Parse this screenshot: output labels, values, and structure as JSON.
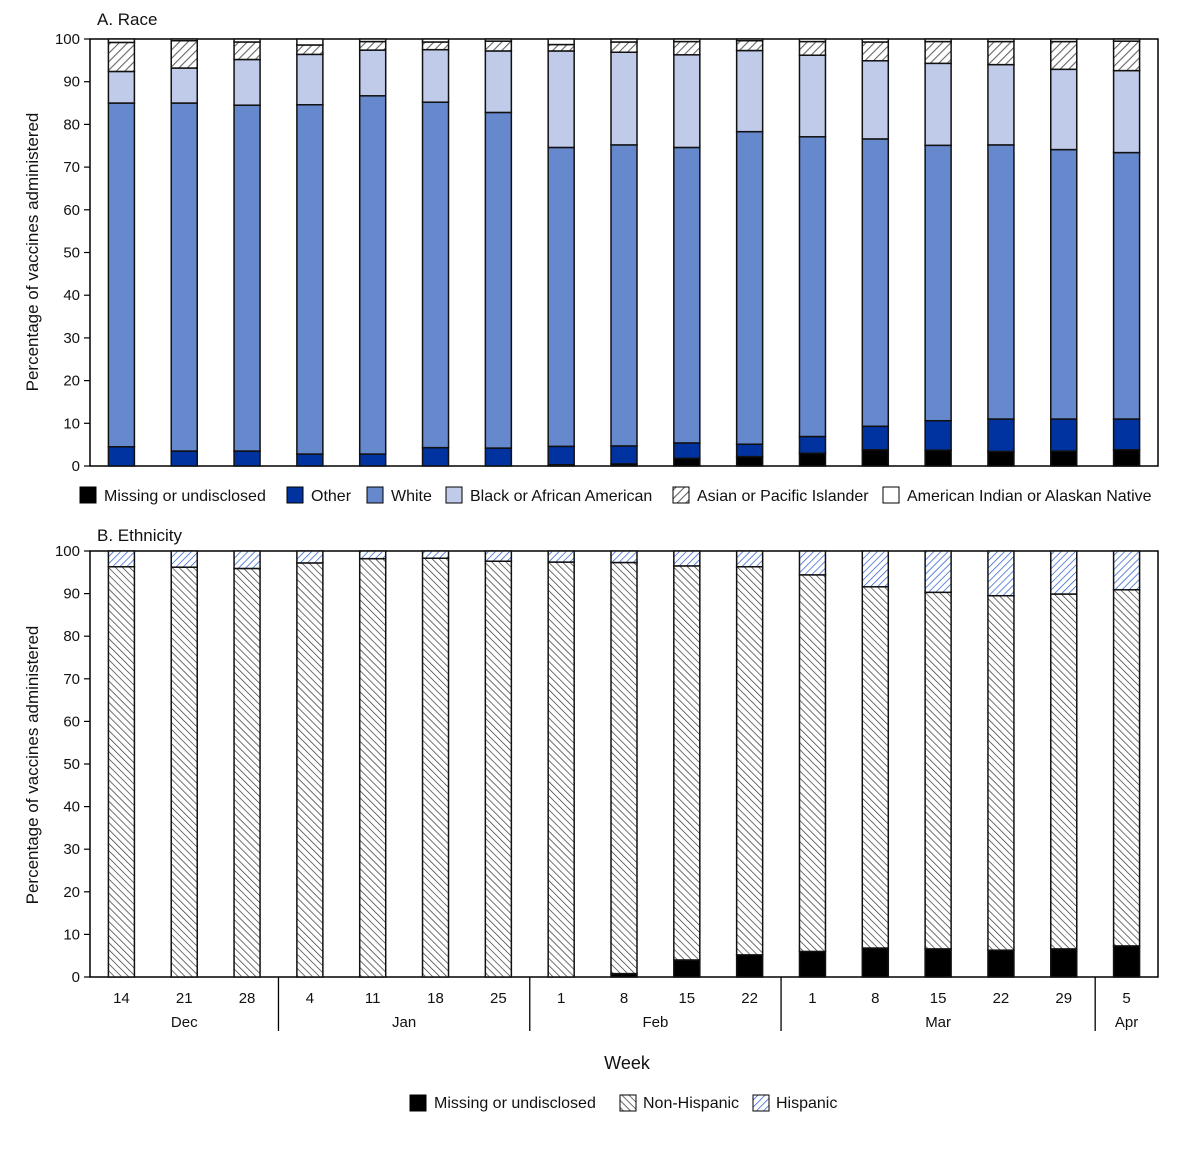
{
  "chart_data": [
    {
      "type": "bar",
      "stacked": true,
      "title": "A. Race",
      "xlabel": "",
      "ylabel": "Percentage of vaccines administered",
      "ylim": [
        0,
        100
      ],
      "yticks": [
        0,
        10,
        20,
        30,
        40,
        50,
        60,
        70,
        80,
        90,
        100
      ],
      "grid": false,
      "legend_position": "bottom",
      "categories": [
        "14",
        "21",
        "28",
        "4",
        "11",
        "18",
        "25",
        "1",
        "8",
        "15",
        "22",
        "1",
        "8",
        "15",
        "22",
        "29",
        "5"
      ],
      "series": [
        {
          "name": "Missing or undisclosed",
          "color": "#000000",
          "pattern": "solid",
          "values": [
            0,
            0,
            0,
            0,
            0,
            0,
            0,
            0.3,
            0.5,
            1.8,
            2.2,
            3.0,
            3.8,
            3.7,
            3.4,
            3.5,
            3.8
          ]
        },
        {
          "name": "Other",
          "color": "#0033a0",
          "pattern": "solid",
          "values": [
            4.5,
            3.5,
            3.5,
            2.8,
            2.8,
            4.3,
            4.2,
            4.3,
            4.2,
            3.6,
            2.9,
            3.9,
            5.5,
            6.9,
            7.6,
            7.5,
            7.2
          ]
        },
        {
          "name": "White",
          "color": "#6688cc",
          "pattern": "solid",
          "values": [
            80.5,
            81.5,
            81.0,
            81.8,
            83.9,
            80.9,
            78.6,
            70.0,
            70.5,
            69.2,
            73.2,
            70.2,
            67.3,
            64.5,
            64.2,
            63.1,
            62.4
          ]
        },
        {
          "name": "Black or African American",
          "color": "#c0cbea",
          "pattern": "solid",
          "values": [
            7.4,
            8.2,
            10.7,
            11.8,
            10.7,
            12.3,
            14.4,
            22.6,
            21.7,
            21.7,
            19.0,
            19.1,
            18.3,
            19.2,
            18.8,
            18.8,
            19.2
          ]
        },
        {
          "name": "Asian or Pacific Islander",
          "color": "#666666",
          "pattern": "hatch-forward",
          "values": [
            6.8,
            6.4,
            4.1,
            2.2,
            2.0,
            1.8,
            2.3,
            1.5,
            2.4,
            3.1,
            2.3,
            3.2,
            4.4,
            5.1,
            5.4,
            6.5,
            6.9
          ]
        },
        {
          "name": "American Indian or Alaskan Native",
          "color": "#ffffff",
          "pattern": "solid",
          "values": [
            0.8,
            0.4,
            0.7,
            1.4,
            0.6,
            0.7,
            0.5,
            1.3,
            0.7,
            0.6,
            0.4,
            0.6,
            0.7,
            0.6,
            0.6,
            0.6,
            0.5
          ]
        }
      ]
    },
    {
      "type": "bar",
      "stacked": true,
      "title": "B. Ethnicity",
      "xlabel": "Week",
      "ylabel": "Percentage of vaccines administered",
      "ylim": [
        0,
        100
      ],
      "yticks": [
        0,
        10,
        20,
        30,
        40,
        50,
        60,
        70,
        80,
        90,
        100
      ],
      "grid": false,
      "legend_position": "bottom",
      "categories": [
        "14",
        "21",
        "28",
        "4",
        "11",
        "18",
        "25",
        "1",
        "8",
        "15",
        "22",
        "1",
        "8",
        "15",
        "22",
        "29",
        "5"
      ],
      "months": [
        {
          "label": "Dec",
          "count": 3
        },
        {
          "label": "Jan",
          "count": 4
        },
        {
          "label": "Feb",
          "count": 4
        },
        {
          "label": "Mar",
          "count": 5
        },
        {
          "label": "Apr",
          "count": 1
        }
      ],
      "series": [
        {
          "name": "Missing or undisclosed",
          "color": "#000000",
          "pattern": "solid",
          "values": [
            0,
            0,
            0,
            0,
            0,
            0,
            0,
            0,
            0.8,
            4.0,
            5.2,
            6.0,
            6.8,
            6.6,
            6.3,
            6.6,
            7.3
          ]
        },
        {
          "name": "Non-Hispanic",
          "color": "#333333",
          "pattern": "hatch-back",
          "values": [
            96.3,
            96.2,
            95.9,
            97.2,
            98.2,
            98.3,
            97.6,
            97.4,
            96.5,
            92.5,
            91.1,
            88.4,
            84.8,
            83.7,
            83.2,
            83.3,
            83.6
          ]
        },
        {
          "name": "Hispanic",
          "color": "#2255cc",
          "pattern": "hatch-forward",
          "values": [
            3.7,
            3.8,
            4.1,
            2.8,
            1.8,
            1.7,
            2.4,
            2.6,
            2.7,
            3.5,
            3.7,
            5.6,
            8.4,
            9.7,
            10.5,
            10.1,
            9.1
          ]
        }
      ]
    }
  ]
}
